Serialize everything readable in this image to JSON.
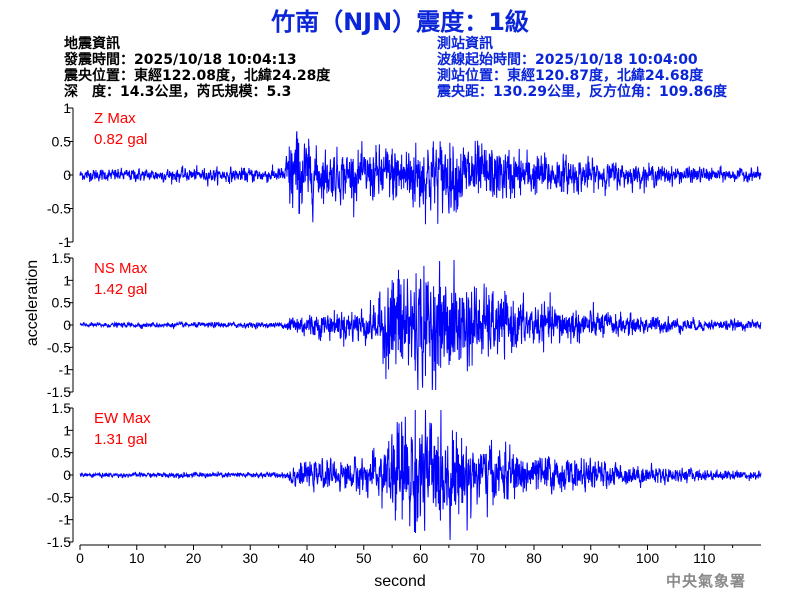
{
  "title": "竹南（NJN）震度：1級",
  "quake_info": {
    "heading": "地震資訊",
    "origin_time": "發震時間：2025/10/18 10:04:13",
    "epicenter": "震央位置：東經122.08度，北緯24.28度",
    "depth_magnitude": "深　度：14.3公里，芮氏規模：5.3"
  },
  "station_info": {
    "heading": "測站資訊",
    "wave_start": "波線起始時間：2025/10/18 10:04:00",
    "station_location": "測站位置：東經120.87度，北緯24.68度",
    "distance_azimuth": "震央距：130.29公里，反方位角：109.86度"
  },
  "credit": "中央氣象署",
  "colors": {
    "title": "#0b25d8",
    "trace": "#0000ff",
    "max_label": "#ff0000",
    "station_text": "#0b25d8"
  },
  "chart_data": {
    "type": "line",
    "xlabel": "second",
    "ylabel": "acceleration",
    "xlim": [
      0,
      120
    ],
    "xticks": [
      0,
      10,
      20,
      30,
      40,
      50,
      60,
      70,
      80,
      90,
      100,
      110
    ],
    "p_arrival_s": 37,
    "s_arrival_s": 56,
    "panels": [
      {
        "component": "Z",
        "max_label": "Z Max",
        "max_value": "0.82 gal",
        "ylim": [
          -1,
          1
        ],
        "yticks": [
          -1,
          -0.5,
          0,
          0.5,
          1
        ],
        "envelope": [
          {
            "t": 0,
            "amp": 0.07
          },
          {
            "t": 36,
            "amp": 0.09
          },
          {
            "t": 37,
            "amp": 0.5
          },
          {
            "t": 38,
            "amp": 0.55
          },
          {
            "t": 42,
            "amp": 0.3
          },
          {
            "t": 50,
            "amp": 0.28
          },
          {
            "t": 57,
            "amp": 0.4
          },
          {
            "t": 62,
            "amp": 0.45
          },
          {
            "t": 68,
            "amp": 0.4
          },
          {
            "t": 75,
            "amp": 0.3
          },
          {
            "t": 90,
            "amp": 0.18
          },
          {
            "t": 105,
            "amp": 0.1
          },
          {
            "t": 120,
            "amp": 0.07
          }
        ]
      },
      {
        "component": "NS",
        "max_label": "NS Max",
        "max_value": "1.42 gal",
        "ylim": [
          -1.5,
          1.5
        ],
        "yticks": [
          -1.5,
          -1,
          -0.5,
          0,
          0.5,
          1,
          1.5
        ],
        "envelope": [
          {
            "t": 0,
            "amp": 0.04
          },
          {
            "t": 36,
            "amp": 0.05
          },
          {
            "t": 37,
            "amp": 0.2
          },
          {
            "t": 45,
            "amp": 0.25
          },
          {
            "t": 52,
            "amp": 0.35
          },
          {
            "t": 56,
            "amp": 1.2
          },
          {
            "t": 60,
            "amp": 1.0
          },
          {
            "t": 66,
            "amp": 0.9
          },
          {
            "t": 72,
            "amp": 0.6
          },
          {
            "t": 80,
            "amp": 0.4
          },
          {
            "t": 95,
            "amp": 0.2
          },
          {
            "t": 110,
            "amp": 0.1
          },
          {
            "t": 120,
            "amp": 0.08
          }
        ]
      },
      {
        "component": "EW",
        "max_label": "EW Max",
        "max_value": "1.31 gal",
        "ylim": [
          -1.5,
          1.5
        ],
        "yticks": [
          -1.5,
          -1,
          -0.5,
          0,
          0.5,
          1,
          1.5
        ],
        "envelope": [
          {
            "t": 0,
            "amp": 0.04
          },
          {
            "t": 36,
            "amp": 0.05
          },
          {
            "t": 37,
            "amp": 0.2
          },
          {
            "t": 45,
            "amp": 0.25
          },
          {
            "t": 52,
            "amp": 0.35
          },
          {
            "t": 56,
            "amp": 1.0
          },
          {
            "t": 59,
            "amp": 1.1
          },
          {
            "t": 64,
            "amp": 0.9
          },
          {
            "t": 70,
            "amp": 0.6
          },
          {
            "t": 80,
            "amp": 0.35
          },
          {
            "t": 95,
            "amp": 0.2
          },
          {
            "t": 110,
            "amp": 0.1
          },
          {
            "t": 120,
            "amp": 0.08
          }
        ]
      }
    ]
  }
}
